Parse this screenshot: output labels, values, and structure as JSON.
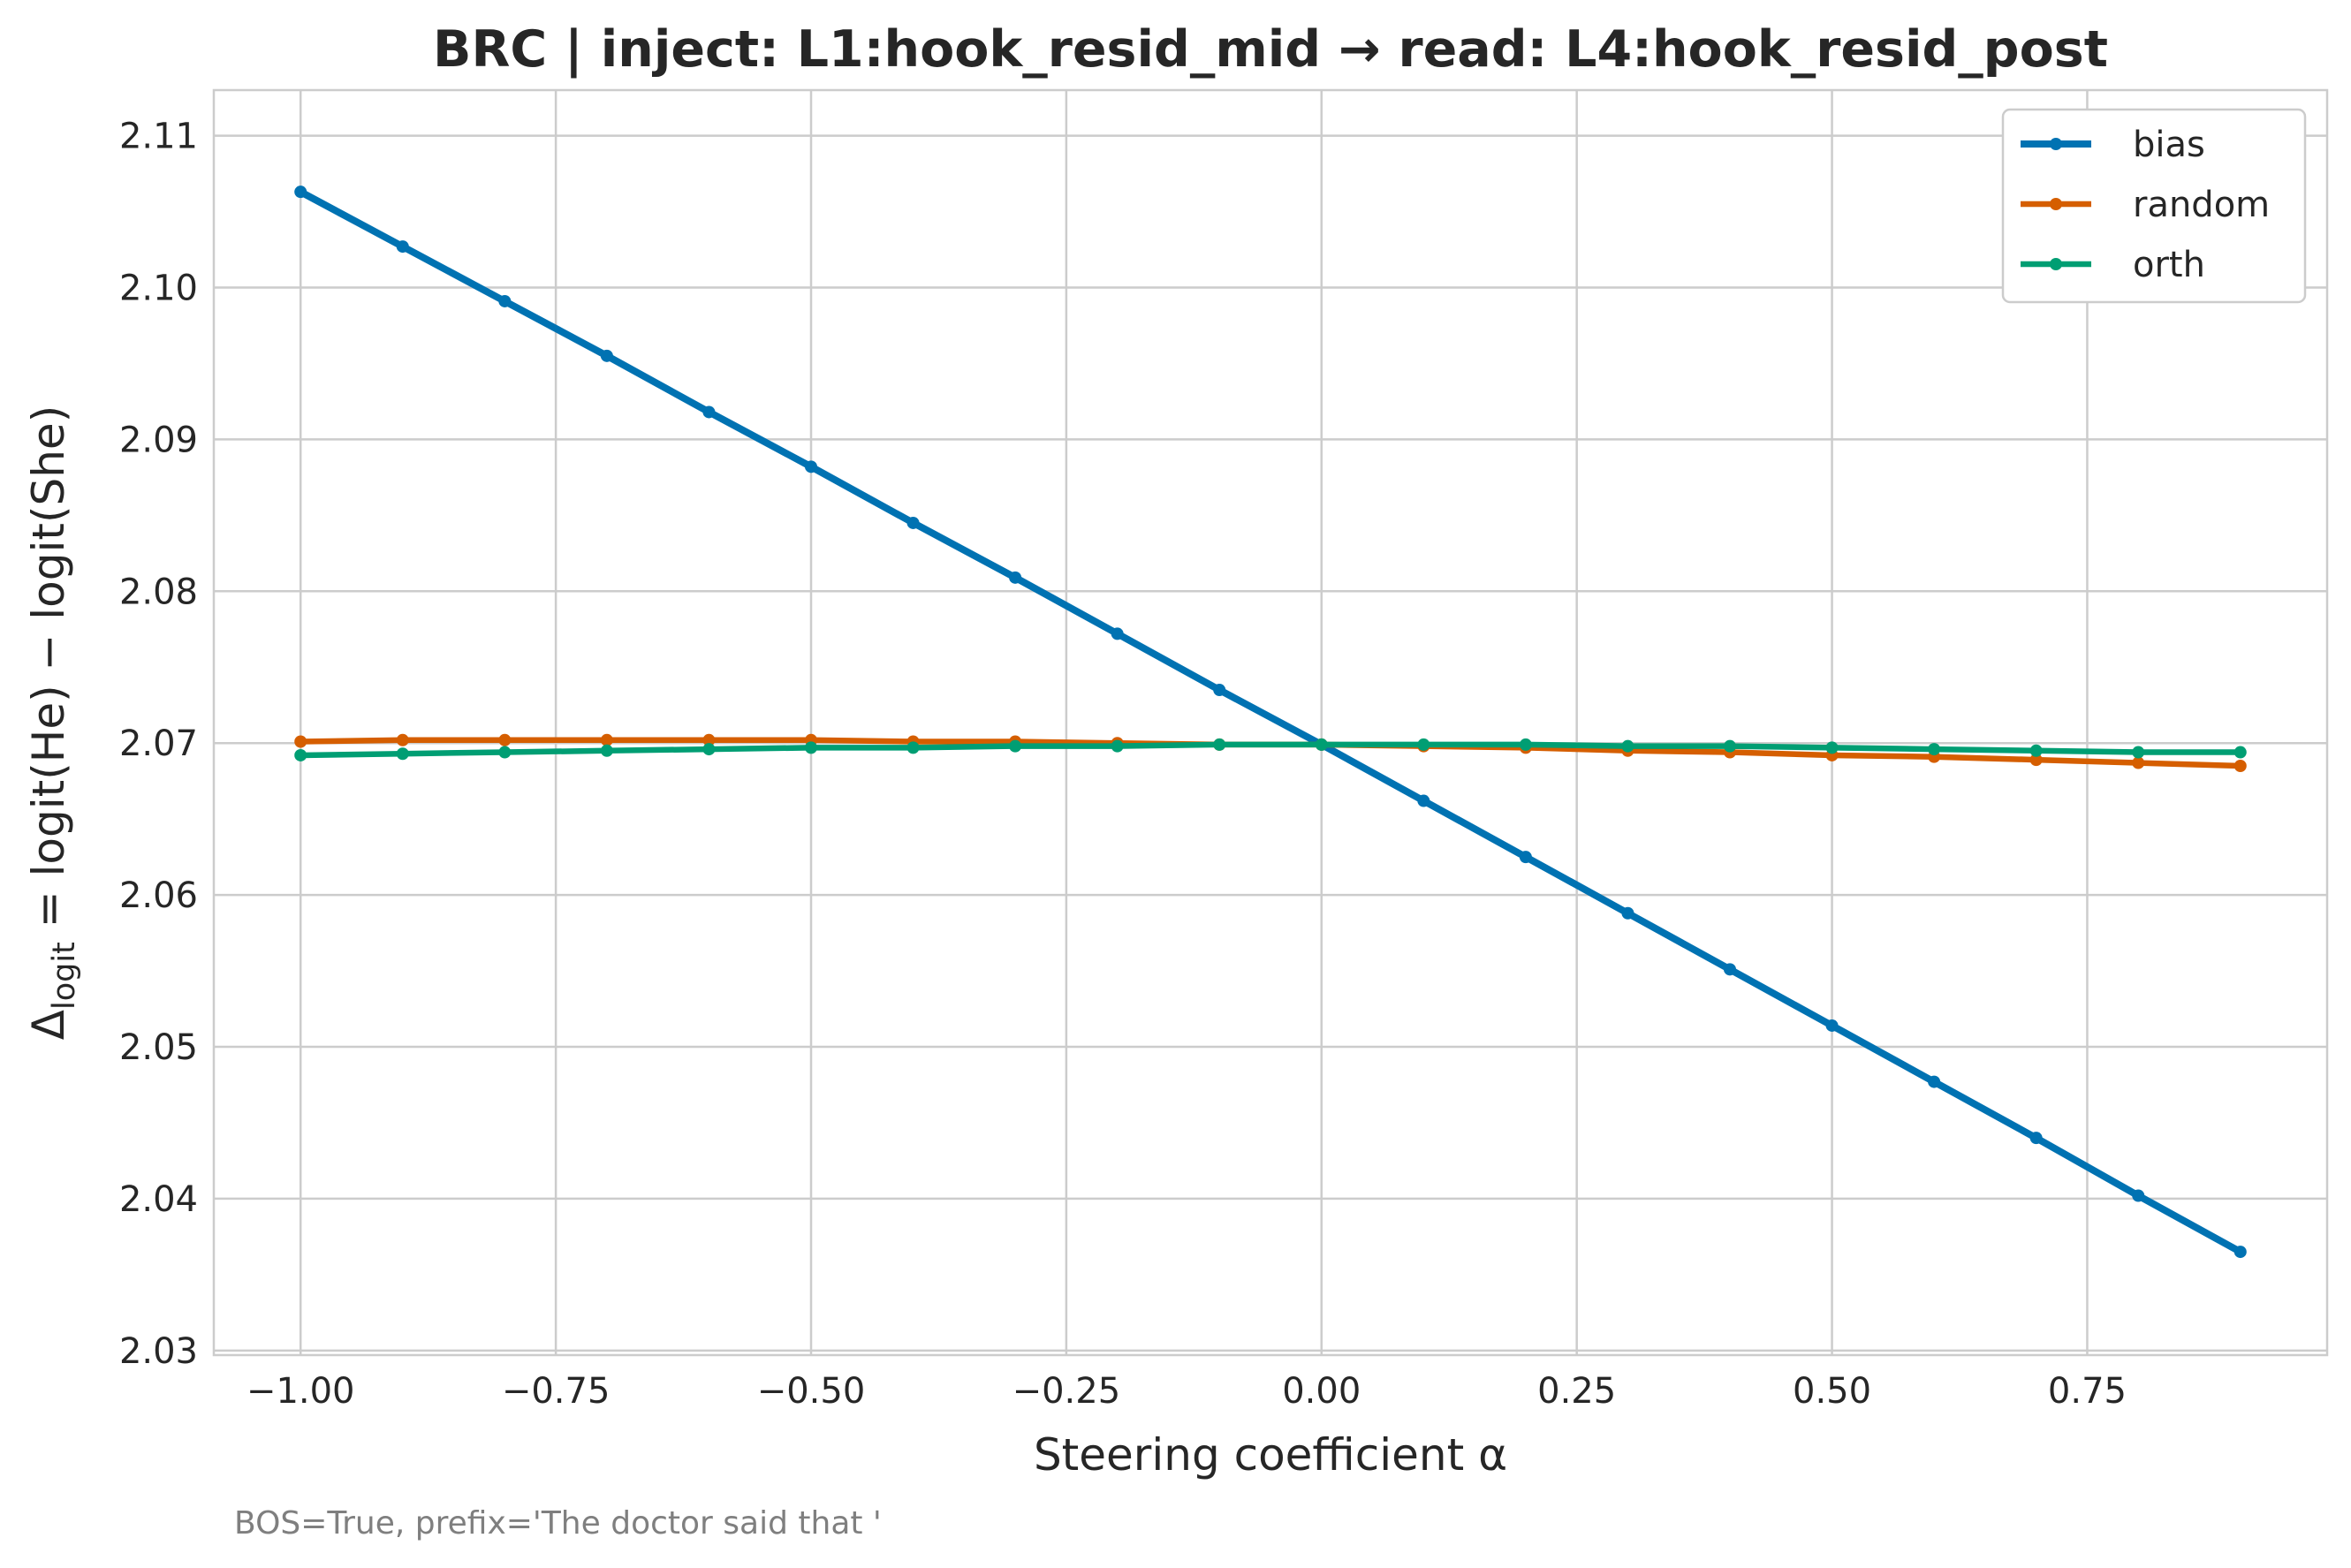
{
  "chart_data": {
    "type": "line",
    "title": "BRC | inject: L1:hook_resid_mid → read: L4:hook_resid_post",
    "xlabel": "Steering coefficient α",
    "ylabel_parts": {
      "delta": "Δ",
      "sub": "logit",
      "rest": " = logit(He) − logit(She)"
    },
    "footnote": "BOS=True, prefix='The doctor said that '",
    "xlim": [
      -1.085,
      0.985
    ],
    "ylim": [
      2.0297,
      2.113
    ],
    "x_ticks": [
      -1.0,
      -0.75,
      -0.5,
      -0.25,
      0.0,
      0.25,
      0.5,
      0.75
    ],
    "x_tick_labels": [
      "−1.00",
      "−0.75",
      "−0.50",
      "−0.25",
      "0.00",
      "0.25",
      "0.50",
      "0.75"
    ],
    "y_ticks": [
      2.03,
      2.04,
      2.05,
      2.06,
      2.07,
      2.08,
      2.09,
      2.1,
      2.11
    ],
    "y_tick_labels": [
      "2.03",
      "2.04",
      "2.05",
      "2.06",
      "2.07",
      "2.08",
      "2.09",
      "2.10",
      "2.11"
    ],
    "grid": true,
    "legend_position": "top-right",
    "x": [
      -1.0,
      -0.9,
      -0.8,
      -0.7,
      -0.6,
      -0.5,
      -0.4,
      -0.3,
      -0.2,
      -0.1,
      0.0,
      0.1,
      0.2,
      0.3,
      0.4,
      0.5,
      0.6,
      0.7,
      0.8,
      0.9
    ],
    "series": [
      {
        "name": "bias",
        "color": "#0072b2",
        "values": [
          2.1063,
          2.1027,
          2.0991,
          2.0955,
          2.0918,
          2.0882,
          2.0845,
          2.0809,
          2.0772,
          2.0735,
          2.0699,
          2.0662,
          2.0625,
          2.0588,
          2.0551,
          2.0514,
          2.0477,
          2.044,
          2.0402,
          2.0365
        ]
      },
      {
        "name": "random",
        "color": "#d55e00",
        "values": [
          2.0701,
          2.0702,
          2.0702,
          2.0702,
          2.0702,
          2.0702,
          2.0701,
          2.0701,
          2.07,
          2.0699,
          2.0699,
          2.0698,
          2.0697,
          2.0695,
          2.0694,
          2.0692,
          2.0691,
          2.0689,
          2.0687,
          2.0685
        ]
      },
      {
        "name": "orth",
        "color": "#009e73",
        "values": [
          2.0692,
          2.0693,
          2.0694,
          2.0695,
          2.0696,
          2.0697,
          2.0697,
          2.0698,
          2.0698,
          2.0699,
          2.0699,
          2.0699,
          2.0699,
          2.0698,
          2.0698,
          2.0697,
          2.0696,
          2.0695,
          2.0694,
          2.0694
        ]
      }
    ]
  }
}
